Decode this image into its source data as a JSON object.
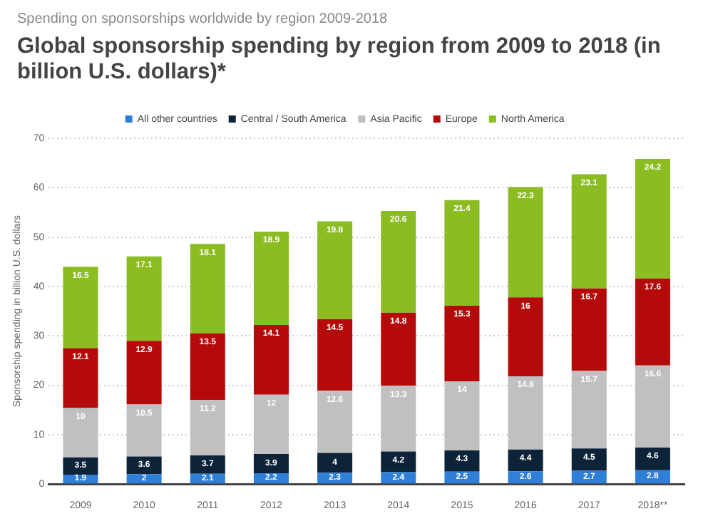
{
  "chart_data": {
    "type": "bar",
    "subtitle": "Spending on sponsorships worldwide by region 2009-2018",
    "title": "Global sponsorship spending by region from 2009 to 2018 (in billion U.S. dollars)*",
    "ylabel": "Sponsorship spending in billion U.S. dollars",
    "categories": [
      "2009",
      "2010",
      "2011",
      "2012",
      "2013",
      "2014",
      "2015",
      "2016",
      "2017",
      "2018**"
    ],
    "stacked": true,
    "data_labels": true,
    "grid": "y",
    "legend": "top",
    "ylim": [
      0,
      70
    ],
    "yticks": [
      0,
      10,
      20,
      30,
      40,
      50,
      60,
      70
    ],
    "series": [
      {
        "name": "All other countries",
        "color": "#2f7ed8",
        "values": [
          1.9,
          2,
          2.1,
          2.2,
          2.3,
          2.4,
          2.5,
          2.6,
          2.7,
          2.8
        ]
      },
      {
        "name": "Central / South America",
        "color": "#0d233a",
        "values": [
          3.5,
          3.6,
          3.7,
          3.9,
          4,
          4.2,
          4.3,
          4.4,
          4.5,
          4.6
        ]
      },
      {
        "name": "Asia Pacific",
        "color": "#c0c0c0",
        "values": [
          10,
          10.5,
          11.2,
          12,
          12.6,
          13.3,
          14,
          14.8,
          15.7,
          16.6
        ]
      },
      {
        "name": "Europe",
        "color": "#b50a0a",
        "values": [
          12.1,
          12.9,
          13.5,
          14.1,
          14.5,
          14.8,
          15.3,
          16,
          16.7,
          17.6
        ]
      },
      {
        "name": "North America",
        "color": "#8bbc21",
        "values": [
          16.5,
          17.1,
          18.1,
          18.9,
          19.8,
          20.6,
          21.4,
          22.3,
          23.1,
          24.2
        ]
      }
    ]
  }
}
